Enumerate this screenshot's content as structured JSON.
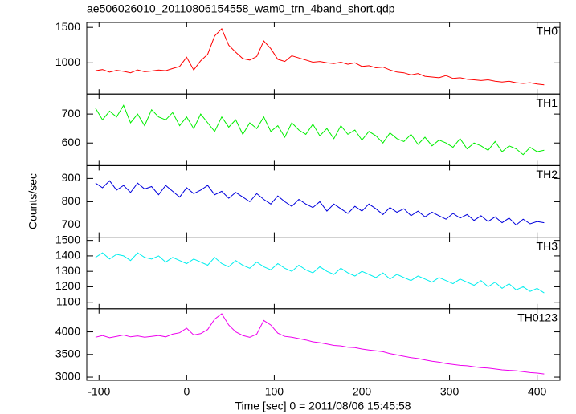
{
  "chart_data": {
    "type": "line",
    "title": "ae506026010_20110806154558_wam0_trn_4band_short.qdp",
    "x_label": "Time [sec] 0 = 2011/08/06 15:45:58",
    "y_label": "Counts/sec",
    "xlim": [
      -114,
      426
    ],
    "xticks": [
      -100,
      0,
      100,
      200,
      300,
      400
    ],
    "x": [
      -104,
      -96,
      -88,
      -80,
      -72,
      -64,
      -56,
      -48,
      -40,
      -32,
      -24,
      -16,
      -8,
      0,
      8,
      16,
      24,
      32,
      40,
      48,
      56,
      64,
      72,
      80,
      88,
      96,
      104,
      112,
      120,
      128,
      136,
      144,
      152,
      160,
      168,
      176,
      184,
      192,
      200,
      208,
      216,
      224,
      232,
      240,
      248,
      256,
      264,
      272,
      280,
      288,
      296,
      304,
      312,
      320,
      328,
      336,
      344,
      352,
      360,
      368,
      376,
      384,
      392,
      400,
      408
    ],
    "panels": [
      {
        "name": "TH0",
        "color": "#ff0000",
        "ylim": [
          560,
          1570
        ],
        "yticks": [
          1000,
          1500
        ],
        "values": [
          890,
          905,
          870,
          895,
          880,
          860,
          900,
          875,
          885,
          900,
          890,
          920,
          950,
          1080,
          900,
          1030,
          1120,
          1380,
          1480,
          1250,
          1150,
          1060,
          1040,
          1090,
          1310,
          1200,
          1050,
          1020,
          1100,
          1070,
          1040,
          1010,
          1020,
          1000,
          990,
          1010,
          980,
          1000,
          950,
          960,
          930,
          940,
          900,
          870,
          860,
          830,
          850,
          810,
          800,
          790,
          820,
          780,
          790,
          770,
          760,
          750,
          760,
          740,
          730,
          740,
          720,
          710,
          720,
          700,
          690
        ]
      },
      {
        "name": "TH1",
        "color": "#00ee00",
        "ylim": [
          522,
          769
        ],
        "yticks": [
          600,
          700
        ],
        "values": [
          720,
          680,
          710,
          690,
          730,
          670,
          700,
          660,
          715,
          690,
          680,
          705,
          660,
          690,
          650,
          700,
          670,
          640,
          690,
          655,
          680,
          630,
          670,
          650,
          690,
          640,
          660,
          620,
          670,
          645,
          630,
          665,
          625,
          650,
          615,
          660,
          630,
          645,
          610,
          640,
          625,
          600,
          635,
          615,
          605,
          630,
          595,
          620,
          590,
          610,
          600,
          585,
          615,
          580,
          600,
          590,
          575,
          605,
          570,
          590,
          580,
          560,
          585,
          570,
          575
        ]
      },
      {
        "name": "TH2",
        "color": "#0000dd",
        "ylim": [
          648,
          955
        ],
        "yticks": [
          700,
          800,
          900
        ],
        "values": [
          880,
          860,
          890,
          850,
          870,
          840,
          880,
          855,
          865,
          830,
          870,
          845,
          820,
          860,
          835,
          850,
          870,
          830,
          845,
          815,
          840,
          820,
          800,
          835,
          810,
          790,
          825,
          800,
          780,
          810,
          790,
          775,
          800,
          760,
          790,
          770,
          750,
          780,
          760,
          790,
          770,
          745,
          775,
          755,
          770,
          740,
          760,
          735,
          755,
          740,
          725,
          750,
          730,
          745,
          720,
          740,
          715,
          735,
          710,
          730,
          700,
          725,
          705,
          715,
          710
        ]
      },
      {
        "name": "TH3",
        "color": "#00eeee",
        "ylim": [
          1058,
          1521
        ],
        "yticks": [
          1100,
          1200,
          1300,
          1400,
          1500
        ],
        "values": [
          1390,
          1420,
          1380,
          1410,
          1400,
          1370,
          1420,
          1390,
          1380,
          1400,
          1360,
          1390,
          1370,
          1350,
          1380,
          1360,
          1340,
          1390,
          1350,
          1330,
          1370,
          1340,
          1320,
          1360,
          1330,
          1310,
          1350,
          1320,
          1300,
          1340,
          1310,
          1290,
          1330,
          1300,
          1280,
          1320,
          1290,
          1270,
          1300,
          1280,
          1260,
          1290,
          1250,
          1280,
          1260,
          1240,
          1270,
          1250,
          1230,
          1260,
          1240,
          1220,
          1250,
          1230,
          1210,
          1240,
          1200,
          1230,
          1190,
          1220,
          1180,
          1200,
          1170,
          1190,
          1160
        ]
      },
      {
        "name": "TH0123",
        "color": "#ee00ee",
        "ylim": [
          2930,
          4509
        ],
        "yticks": [
          3000,
          3500,
          4000
        ],
        "values": [
          3880,
          3920,
          3870,
          3900,
          3930,
          3890,
          3910,
          3880,
          3900,
          3920,
          3890,
          3950,
          3980,
          4080,
          3930,
          3960,
          4050,
          4280,
          4400,
          4150,
          4000,
          3920,
          3880,
          3950,
          4250,
          4150,
          3970,
          3900,
          3880,
          3850,
          3820,
          3780,
          3760,
          3730,
          3700,
          3690,
          3660,
          3650,
          3620,
          3600,
          3580,
          3560,
          3520,
          3490,
          3460,
          3430,
          3410,
          3380,
          3350,
          3330,
          3300,
          3280,
          3260,
          3250,
          3230,
          3210,
          3200,
          3180,
          3160,
          3150,
          3140,
          3120,
          3100,
          3090,
          3070
        ]
      }
    ]
  }
}
